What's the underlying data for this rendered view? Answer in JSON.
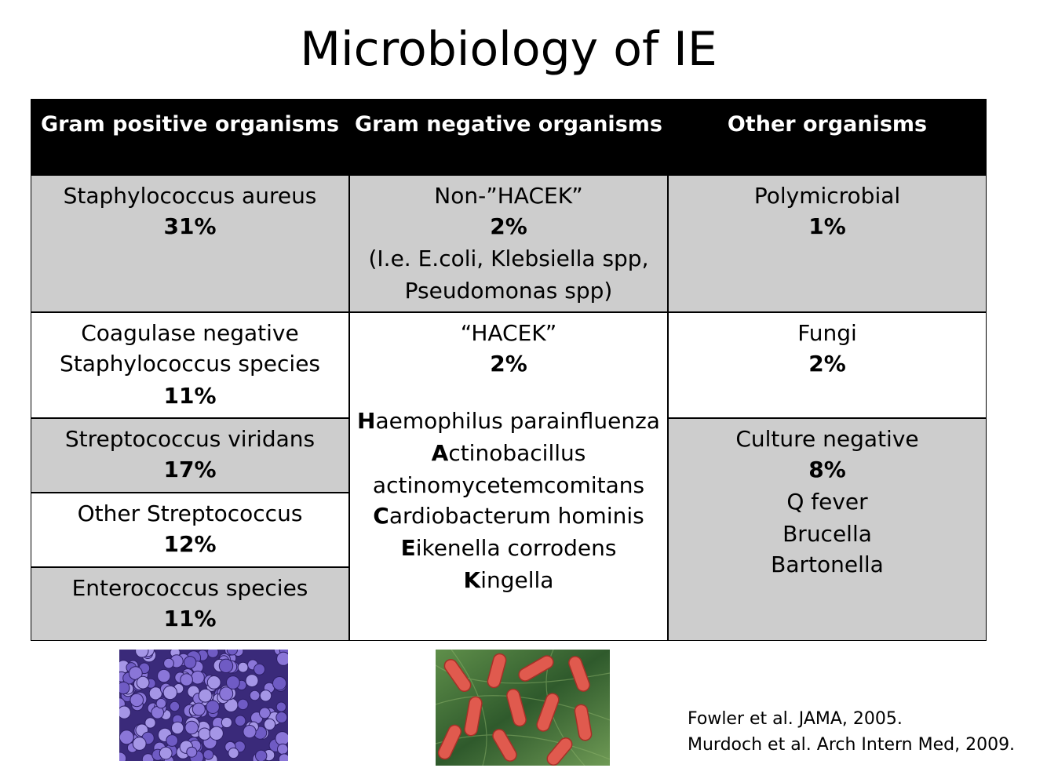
{
  "title": "Microbiology of IE",
  "headers": [
    "Gram positive organisms",
    "Gram negative organisms",
    "Other organisms"
  ],
  "gram_positive": [
    {
      "name": [
        "Staphylococcus aureus"
      ],
      "pct": "31%"
    },
    {
      "name": [
        "Coagulase negative",
        "Staphylococcus species"
      ],
      "pct": "11%"
    },
    {
      "name": [
        "Streptococcus viridans"
      ],
      "pct": "17%"
    },
    {
      "name": [
        "Other Streptococcus"
      ],
      "pct": "12%"
    },
    {
      "name": [
        "Enterococcus species"
      ],
      "pct": "11%"
    }
  ],
  "gram_negative": {
    "non_hacek": {
      "name": "Non-”HACEK”",
      "pct": "2%",
      "examples": [
        "(I.e. E.coli, Klebsiella spp,",
        "Pseudomonas spp)"
      ]
    },
    "hacek": {
      "name": "“HACEK”",
      "pct": "2%",
      "organisms": [
        {
          "initial": "H",
          "rest": "aemophilus parainfluenza"
        },
        {
          "initial": "A",
          "rest": "ctinobacillus"
        },
        {
          "initial": "",
          "rest": "actinomycetemcomitans"
        },
        {
          "initial": "C",
          "rest": "ardiobacterum hominis"
        },
        {
          "initial": "E",
          "rest": "ikenella corrodens"
        },
        {
          "initial": "K",
          "rest": "ingella"
        }
      ]
    }
  },
  "other": [
    {
      "name": "Polymicrobial",
      "pct": "1%"
    },
    {
      "name": "Fungi",
      "pct": "2%"
    },
    {
      "name": "Culture negative",
      "pct": "8%",
      "examples": [
        "Q fever",
        "Brucella",
        "Bartonella"
      ]
    }
  ],
  "images": [
    "staphylococcus-micrograph",
    "gram-negative-bacilli-micrograph"
  ],
  "references": [
    "Fowler et al. JAMA, 2005.",
    "Murdoch et al. Arch Intern Med, 2009."
  ],
  "colors": {
    "header_bg": "#000000",
    "gray_row": "#cdcdcd"
  }
}
